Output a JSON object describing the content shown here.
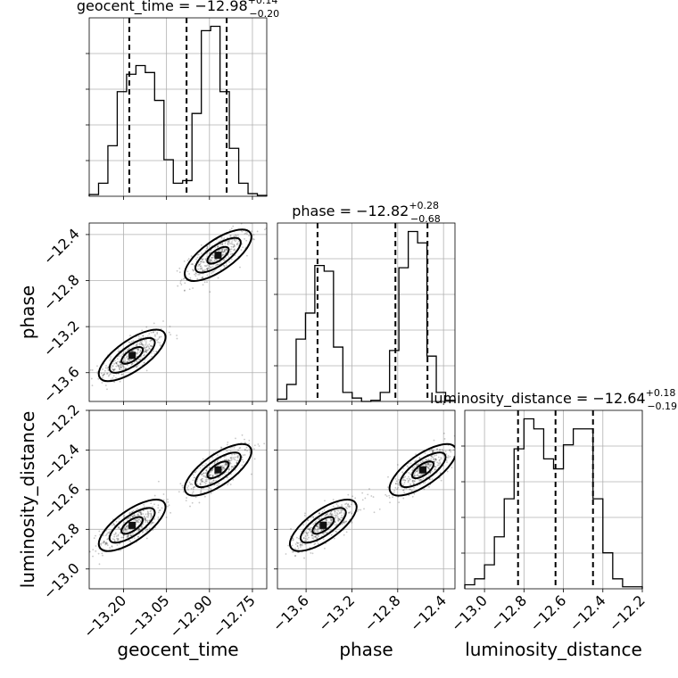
{
  "chart_data": {
    "type": "corner",
    "parameters": [
      {
        "id": "geocent_time",
        "label": "geocent_time",
        "range": [
          -13.32,
          -12.7
        ],
        "ticks": [
          -13.2,
          -13.05,
          -12.9,
          -12.75
        ],
        "tick_labels": [
          "−13.20",
          "−13.05",
          "−12.90",
          "−12.75"
        ],
        "title_main": "geocent_time = −12.98",
        "title_plus": "+0.14",
        "title_minus": "−0.20",
        "quantiles": [
          -13.18,
          -12.98,
          -12.84
        ],
        "hist_counts": [
          2,
          15,
          58,
          120,
          140,
          150,
          142,
          110,
          42,
          15,
          18,
          95,
          190,
          195,
          120,
          55,
          15,
          3,
          1
        ]
      },
      {
        "id": "phase",
        "label": "phase",
        "range": [
          -13.85,
          -12.3
        ],
        "ticks": [
          -13.6,
          -13.2,
          -12.8,
          -12.4
        ],
        "tick_labels": [
          "−13.6",
          "−13.2",
          "−12.8",
          "−12.4"
        ],
        "title_main": "phase = −12.82",
        "title_plus": "+0.28",
        "title_minus": "−0.68",
        "quantiles": [
          -13.5,
          -12.82,
          -12.54
        ],
        "hist_counts": [
          2,
          15,
          55,
          78,
          120,
          115,
          48,
          8,
          3,
          0,
          1,
          8,
          45,
          118,
          150,
          140,
          40,
          8,
          1
        ]
      },
      {
        "id": "luminosity_distance",
        "label": "luminosity_distance",
        "range": [
          -13.1,
          -12.2
        ],
        "ticks": [
          -13.0,
          -12.8,
          -12.6,
          -12.4,
          -12.2
        ],
        "tick_labels": [
          "−13.0",
          "−12.8",
          "−12.6",
          "−12.4",
          "−12.2"
        ],
        "title_main": "luminosity_distance = −12.64",
        "title_plus": "+0.18",
        "title_minus": "−0.19",
        "quantiles": [
          -12.83,
          -12.64,
          -12.45
        ],
        "hist_counts": [
          2,
          5,
          12,
          26,
          45,
          70,
          85,
          80,
          65,
          60,
          72,
          80,
          80,
          45,
          18,
          5,
          1,
          1
        ]
      }
    ],
    "clusters": [
      {
        "geocent_time": -13.17,
        "phase": -13.45,
        "luminosity_distance": -12.78
      },
      {
        "geocent_time": -12.87,
        "phase": -12.58,
        "luminosity_distance": -12.5
      }
    ]
  }
}
